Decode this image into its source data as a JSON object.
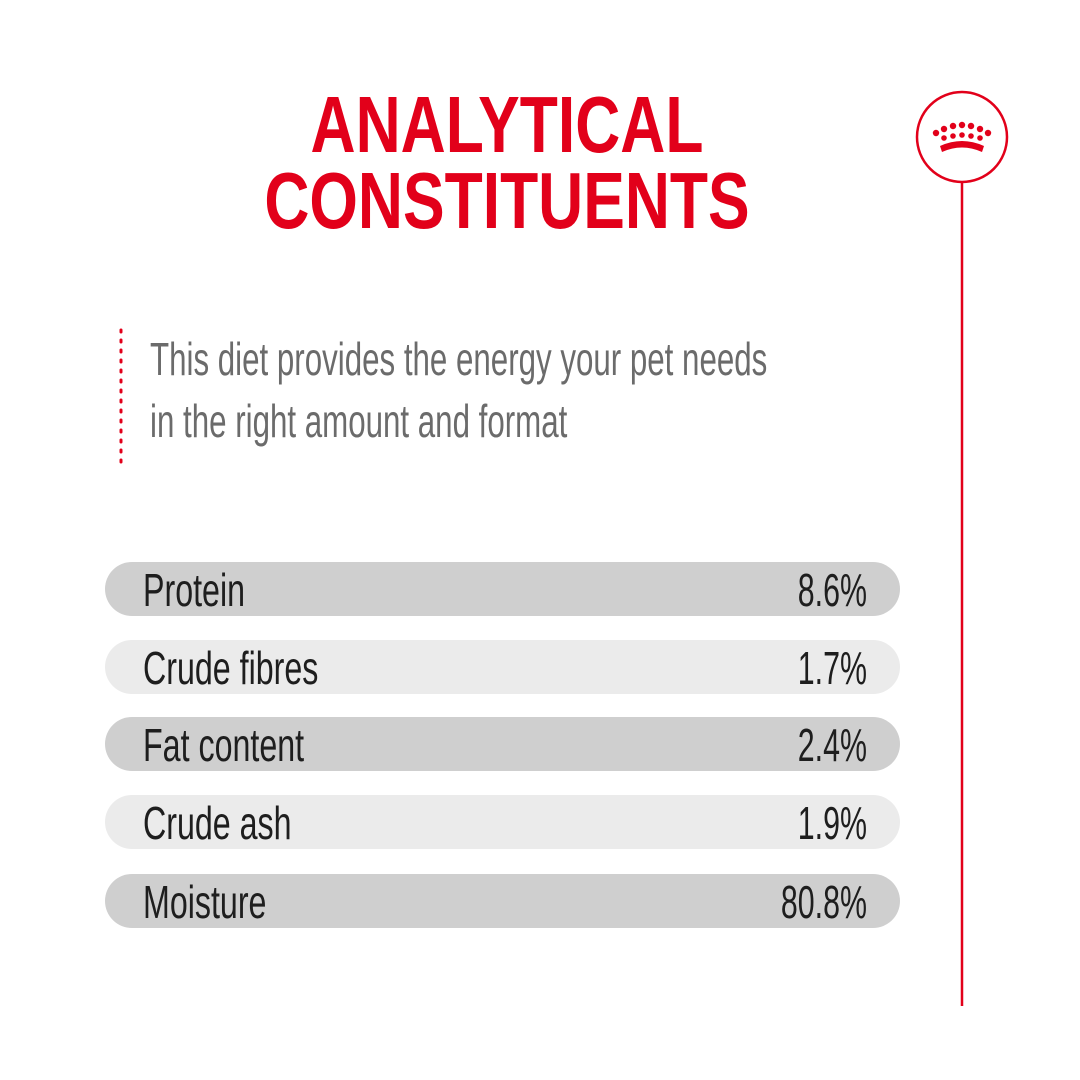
{
  "title": [
    "ANALYTICAL",
    "CONSTITUENTS"
  ],
  "subtitle": [
    "This diet provides the energy your pet needs",
    "in the right amount and format"
  ],
  "table": {
    "rows": [
      [
        "Protein",
        "8.6%"
      ],
      [
        "Crude fibres",
        "1.7%"
      ],
      [
        "Fat content",
        "2.4%"
      ],
      [
        "Crude ash",
        "1.9%"
      ],
      [
        "Moisture",
        "80.8%"
      ]
    ]
  }
}
